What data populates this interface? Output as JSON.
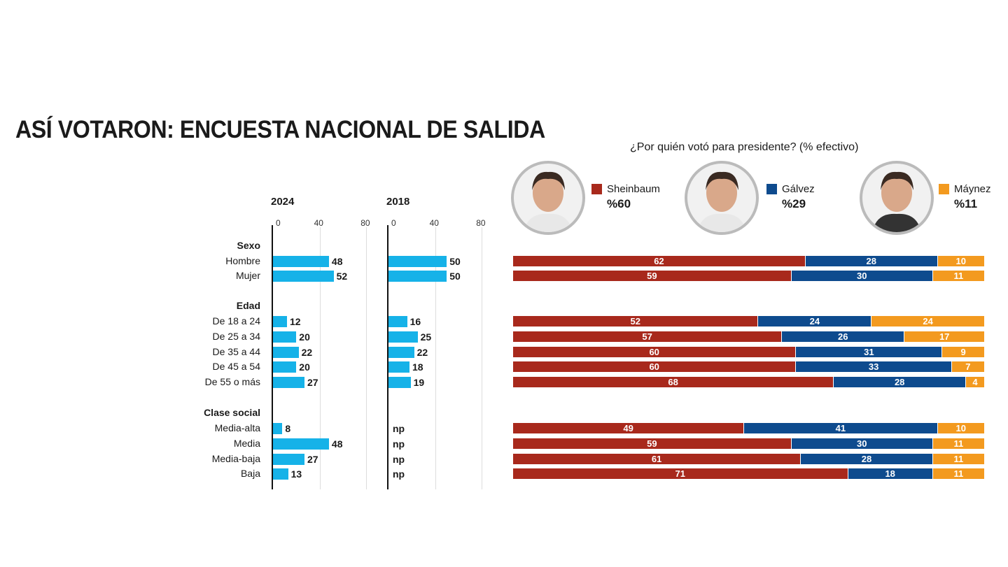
{
  "title": "ASÍ VOTARON: ENCUESTA NACIONAL DE SALIDA",
  "question": "¿Por quién votó para presidente? (% efectivo)",
  "colors": {
    "bars": "#16b2e8",
    "sheinbaum": "#a8291c",
    "galvez": "#0e4b8e",
    "maynez": "#f39a1f"
  },
  "candidates": [
    {
      "name": "Sheinbaum",
      "pct": "%60",
      "color": "#a8291c",
      "icon": "portrait-photo"
    },
    {
      "name": "Gálvez",
      "pct": "%29",
      "color": "#0e4b8e",
      "icon": "portrait-photo"
    },
    {
      "name": "Máynez",
      "pct": "%11",
      "color": "#f39a1f",
      "icon": "portrait-photo"
    }
  ],
  "chart_data": [
    {
      "type": "bar",
      "title": "2024",
      "orientation": "horizontal",
      "xlim": [
        0,
        80
      ],
      "ticks": [
        "0",
        "40",
        "80"
      ],
      "categories": [
        "Hombre",
        "Mujer",
        "De 18 a 24",
        "De 25 a 34",
        "De 35 a 44",
        "De 45 a 54",
        "De 55 o más",
        "Media-alta",
        "Media",
        "Media-baja",
        "Baja"
      ],
      "values": [
        48,
        52,
        12,
        20,
        22,
        20,
        27,
        8,
        48,
        27,
        13
      ]
    },
    {
      "type": "bar",
      "title": "2018",
      "orientation": "horizontal",
      "xlim": [
        0,
        80
      ],
      "ticks": [
        "0",
        "40",
        "80"
      ],
      "categories": [
        "Hombre",
        "Mujer",
        "De 18 a 24",
        "De 25 a 34",
        "De 35 a 44",
        "De 45 a 54",
        "De 55 o más",
        "Media-alta",
        "Media",
        "Media-baja",
        "Baja"
      ],
      "values": [
        50,
        50,
        16,
        25,
        22,
        18,
        19,
        null,
        null,
        null,
        null
      ],
      "missing_label": "np"
    },
    {
      "type": "bar",
      "stacked": true,
      "title": "¿Por quién votó para presidente? (% efectivo)",
      "categories": [
        "Hombre",
        "Mujer",
        "De 18 a 24",
        "De 25 a 34",
        "De 35 a 44",
        "De 45 a 54",
        "De 55 o más",
        "Media-alta",
        "Media",
        "Media-baja",
        "Baja"
      ],
      "series": [
        {
          "name": "Sheinbaum",
          "values": [
            62,
            59,
            52,
            57,
            60,
            60,
            68,
            49,
            59,
            61,
            71
          ]
        },
        {
          "name": "Gálvez",
          "values": [
            28,
            30,
            24,
            26,
            31,
            33,
            28,
            41,
            30,
            28,
            18
          ]
        },
        {
          "name": "Máynez",
          "values": [
            10,
            11,
            24,
            17,
            9,
            7,
            4,
            10,
            11,
            11,
            11
          ]
        }
      ]
    }
  ],
  "groups": [
    {
      "label": "Sexo",
      "rows": [
        0,
        1
      ]
    },
    {
      "label": "Edad",
      "rows": [
        2,
        3,
        4,
        5,
        6
      ]
    },
    {
      "label": "Clase social",
      "rows": [
        7,
        8,
        9,
        10
      ]
    }
  ]
}
